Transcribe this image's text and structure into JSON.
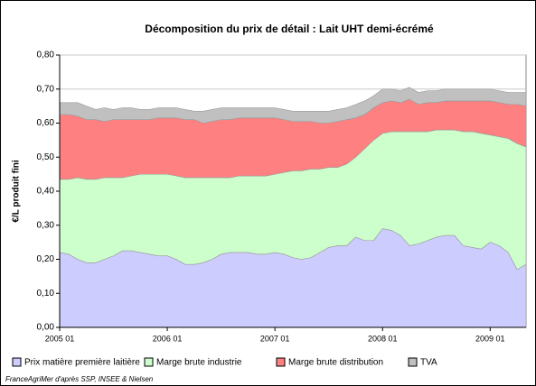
{
  "chart_data": {
    "type": "stacked_area",
    "title": "Décomposition du prix de détail : Lait UHT demi-écrémé",
    "y_label": "€/L produit fini",
    "source": "FranceAgriMer d'après SSP, INSEE & Nielsen",
    "categories": [
      "2005 01",
      null,
      null,
      null,
      null,
      null,
      null,
      null,
      null,
      null,
      null,
      null,
      "2006 01",
      null,
      null,
      null,
      null,
      null,
      null,
      null,
      null,
      null,
      null,
      null,
      "2007 01",
      null,
      null,
      null,
      null,
      null,
      null,
      null,
      null,
      null,
      null,
      null,
      "2008 01",
      null,
      null,
      null,
      null,
      null,
      null,
      null,
      null,
      null,
      null,
      null,
      "2009 01",
      null,
      null,
      null,
      null
    ],
    "ylim": [
      0,
      0.8
    ],
    "yticks": [
      {
        "value": 0,
        "label": "0,00"
      },
      {
        "value": 0.1,
        "label": "0,10"
      },
      {
        "value": 0.2,
        "label": "0,20"
      },
      {
        "value": 0.3,
        "label": "0,30"
      },
      {
        "value": 0.4,
        "label": "0,40"
      },
      {
        "value": 0.5,
        "label": "0,50"
      },
      {
        "value": 0.6,
        "label": "0,60"
      },
      {
        "value": 0.7,
        "label": "0,70"
      },
      {
        "value": 0.8,
        "label": "0,80"
      }
    ],
    "grid": true,
    "legend": "bottom",
    "series": [
      {
        "name": "Prix matière première laitière",
        "color": "#ccccff",
        "values": [
          0.22,
          0.215,
          0.2,
          0.19,
          0.19,
          0.2,
          0.21,
          0.225,
          0.225,
          0.22,
          0.215,
          0.21,
          0.21,
          0.2,
          0.185,
          0.185,
          0.19,
          0.2,
          0.215,
          0.22,
          0.22,
          0.22,
          0.215,
          0.215,
          0.22,
          0.215,
          0.205,
          0.2,
          0.205,
          0.22,
          0.235,
          0.24,
          0.24,
          0.265,
          0.255,
          0.255,
          0.29,
          0.285,
          0.27,
          0.24,
          0.245,
          0.255,
          0.265,
          0.27,
          0.27,
          0.24,
          0.235,
          0.23,
          0.25,
          0.24,
          0.22,
          0.17,
          0.185
        ]
      },
      {
        "name": "Marge brute industrie",
        "color": "#ccffcc",
        "values": [
          0.215,
          0.22,
          0.24,
          0.245,
          0.245,
          0.24,
          0.23,
          0.215,
          0.22,
          0.23,
          0.235,
          0.24,
          0.24,
          0.245,
          0.255,
          0.255,
          0.25,
          0.24,
          0.225,
          0.22,
          0.225,
          0.225,
          0.23,
          0.23,
          0.23,
          0.24,
          0.255,
          0.26,
          0.26,
          0.245,
          0.235,
          0.23,
          0.24,
          0.235,
          0.27,
          0.295,
          0.28,
          0.29,
          0.305,
          0.335,
          0.33,
          0.32,
          0.315,
          0.31,
          0.31,
          0.335,
          0.34,
          0.34,
          0.315,
          0.32,
          0.335,
          0.37,
          0.345
        ]
      },
      {
        "name": "Marge brute distribution",
        "color": "#ff8080",
        "values": [
          0.19,
          0.19,
          0.18,
          0.175,
          0.175,
          0.165,
          0.17,
          0.17,
          0.165,
          0.16,
          0.16,
          0.165,
          0.165,
          0.17,
          0.17,
          0.17,
          0.16,
          0.165,
          0.17,
          0.17,
          0.17,
          0.17,
          0.17,
          0.17,
          0.165,
          0.155,
          0.145,
          0.145,
          0.14,
          0.135,
          0.13,
          0.135,
          0.13,
          0.115,
          0.1,
          0.095,
          0.09,
          0.09,
          0.085,
          0.095,
          0.08,
          0.085,
          0.08,
          0.085,
          0.085,
          0.09,
          0.09,
          0.095,
          0.1,
          0.1,
          0.1,
          0.115,
          0.12
        ]
      },
      {
        "name": "TVA",
        "color": "#c0c0c0",
        "values": [
          0.035,
          0.035,
          0.04,
          0.04,
          0.03,
          0.04,
          0.03,
          0.035,
          0.035,
          0.03,
          0.03,
          0.03,
          0.03,
          0.03,
          0.03,
          0.025,
          0.035,
          0.035,
          0.035,
          0.035,
          0.03,
          0.03,
          0.03,
          0.03,
          0.03,
          0.03,
          0.03,
          0.03,
          0.03,
          0.035,
          0.035,
          0.035,
          0.035,
          0.04,
          0.04,
          0.035,
          0.04,
          0.035,
          0.035,
          0.035,
          0.035,
          0.035,
          0.035,
          0.035,
          0.035,
          0.035,
          0.035,
          0.035,
          0.035,
          0.035,
          0.035,
          0.035,
          0.04
        ]
      }
    ]
  }
}
